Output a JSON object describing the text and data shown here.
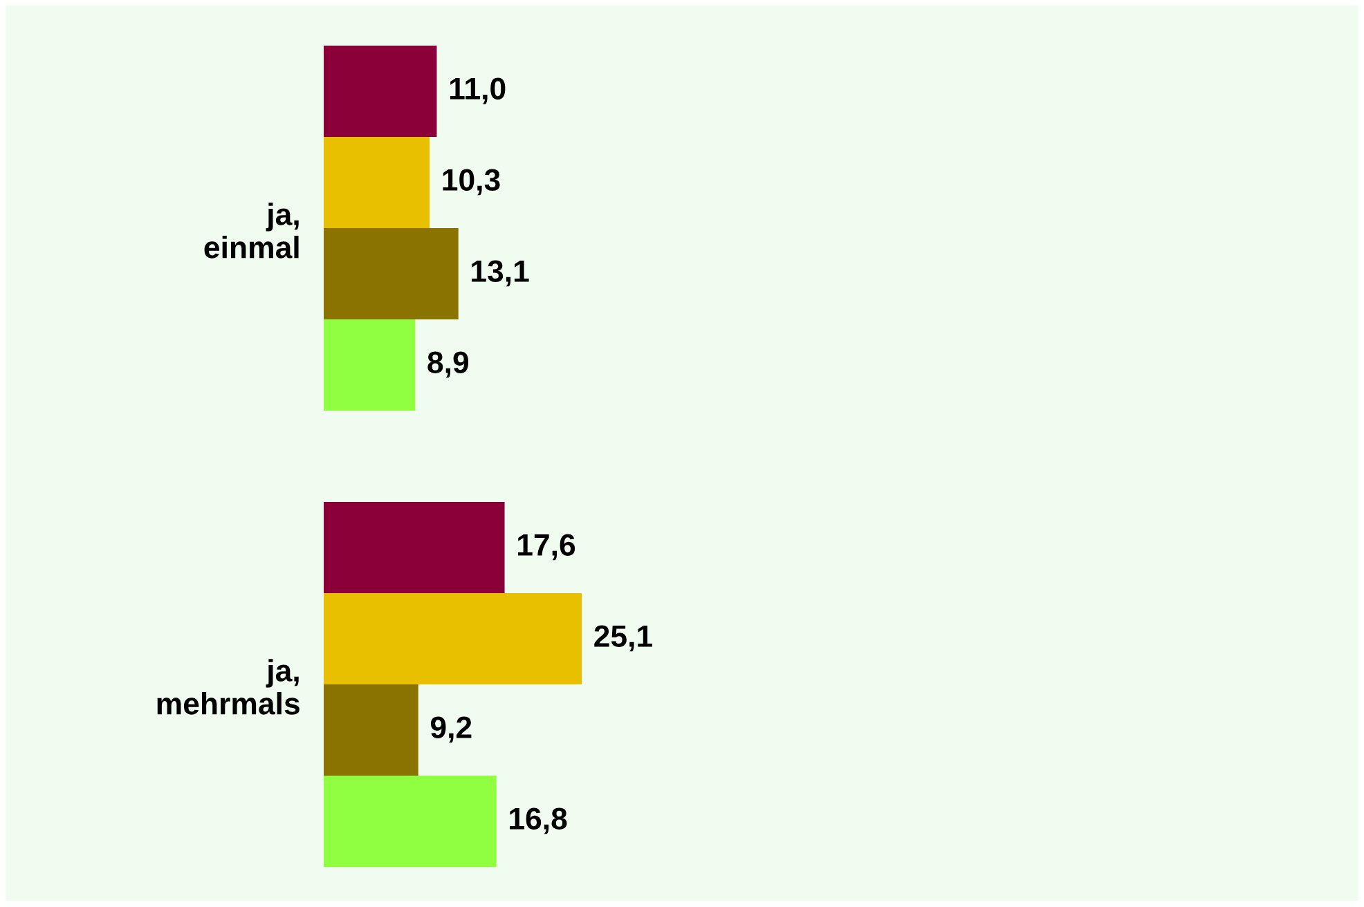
{
  "chart_data": {
    "type": "bar",
    "orientation": "horizontal",
    "categories": [
      "ja,\neinmal",
      "ja,\nmehrmals"
    ],
    "series": [
      {
        "color": "#8b0038",
        "values": [
          11.0,
          17.6
        ],
        "value_labels": [
          "11,0",
          "17,6"
        ]
      },
      {
        "color": "#e8c000",
        "values": [
          10.3,
          25.1
        ],
        "value_labels": [
          "10,3",
          "25,1"
        ]
      },
      {
        "color": "#8b7300",
        "values": [
          13.1,
          9.2
        ],
        "value_labels": [
          "13,1",
          "9,2"
        ]
      },
      {
        "color": "#90ff40",
        "values": [
          8.9,
          16.8
        ],
        "value_labels": [
          "8,9",
          "16,8"
        ]
      }
    ]
  }
}
